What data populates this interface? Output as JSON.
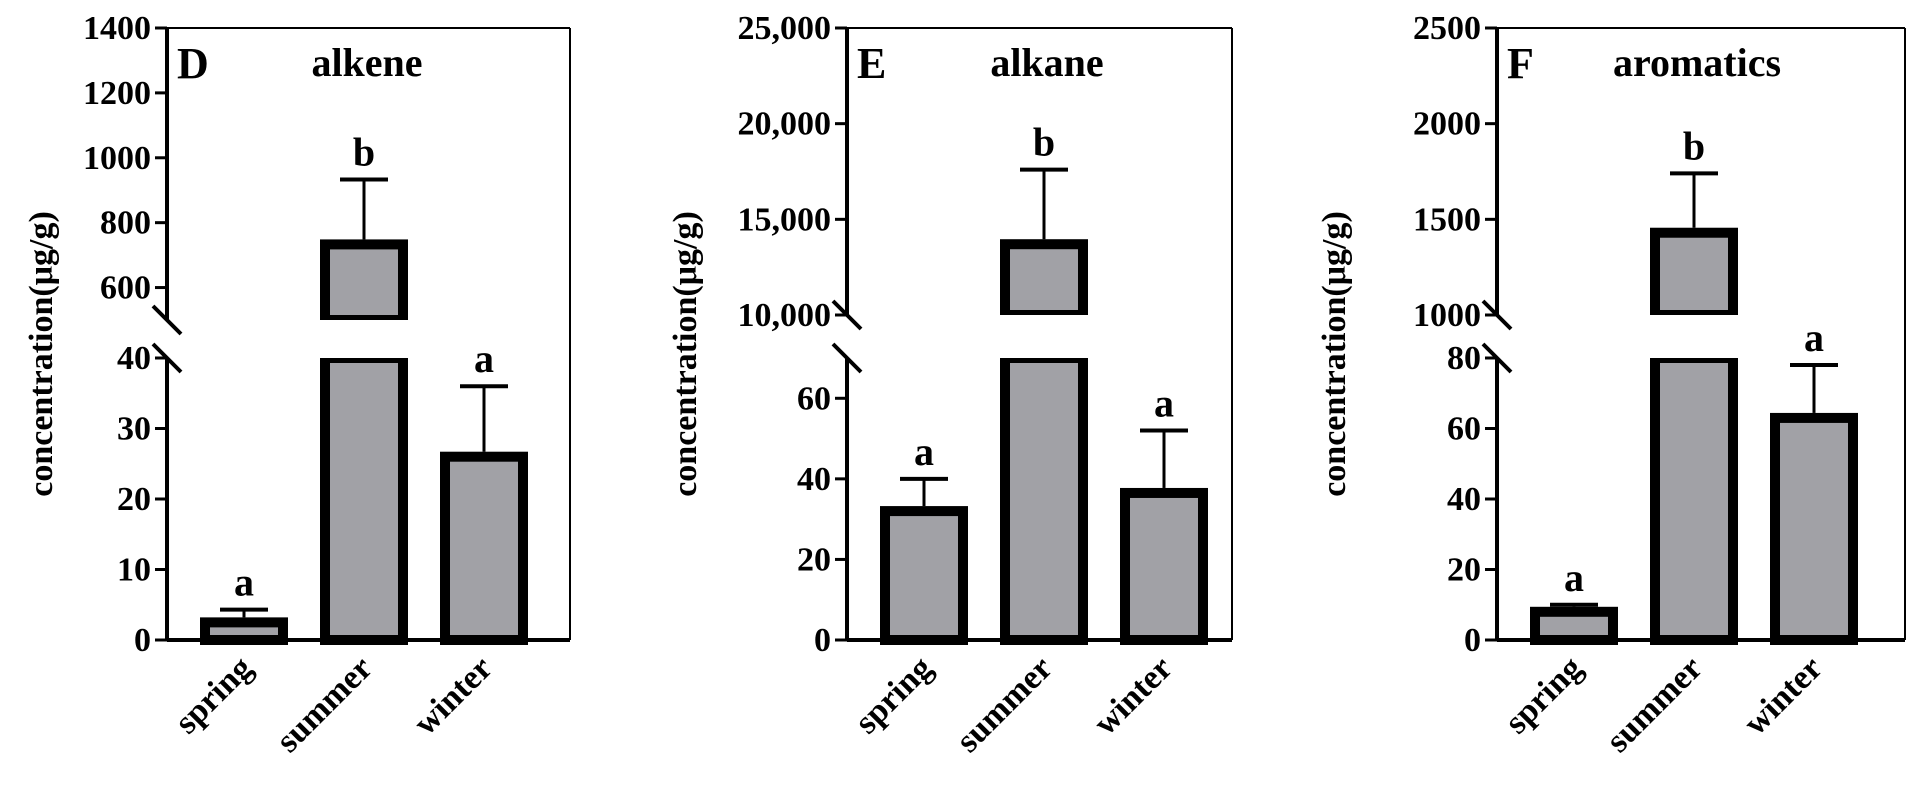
{
  "colors": {
    "bar_fill": "#a1a1a6",
    "bar_stroke": "#000000",
    "axis": "#000000",
    "background": "#ffffff"
  },
  "chart_data": [
    {
      "type": "bar",
      "panel": "D",
      "title": "alkene",
      "ylabel": "concentration(μg/g)",
      "categories": [
        "spring",
        "summer",
        "winter"
      ],
      "values": [
        2.5,
        733,
        26
      ],
      "errors": [
        1.8,
        200,
        10
      ],
      "significance": [
        "a",
        "b",
        "a"
      ],
      "y_broken": true,
      "lower_range": [
        0,
        40
      ],
      "upper_range": [
        500,
        1400
      ],
      "lower_ticks": [
        "0",
        "10",
        "20",
        "30",
        "40"
      ],
      "upper_ticks": [
        "600",
        "800",
        "1000",
        "1200",
        "1400"
      ],
      "lower_tick_values": [
        0,
        10,
        20,
        30,
        40
      ],
      "upper_tick_values": [
        600,
        800,
        1000,
        1200,
        1400
      ]
    },
    {
      "type": "bar",
      "panel": "E",
      "title": "alkane",
      "ylabel": "concentration(μg/g)",
      "categories": [
        "spring",
        "summer",
        "winter"
      ],
      "values": [
        32,
        13700,
        36.5
      ],
      "errors": [
        8,
        3900,
        15.5
      ],
      "significance": [
        "a",
        "b",
        "a"
      ],
      "y_broken": true,
      "lower_range": [
        0,
        70
      ],
      "upper_range": [
        10000,
        25000
      ],
      "lower_ticks": [
        "0",
        "20",
        "40",
        "60"
      ],
      "upper_ticks": [
        "10,000",
        "15,000",
        "20,000",
        "25,000"
      ],
      "lower_tick_values": [
        0,
        20,
        40,
        60
      ],
      "upper_tick_values": [
        10000,
        15000,
        20000,
        25000
      ]
    },
    {
      "type": "bar",
      "panel": "F",
      "title": "aromatics",
      "ylabel": "concentration(μg/g)",
      "categories": [
        "spring",
        "summer",
        "winter"
      ],
      "values": [
        8,
        1430,
        63
      ],
      "errors": [
        2,
        310,
        15
      ],
      "significance": [
        "a",
        "b",
        "a"
      ],
      "y_broken": true,
      "lower_range": [
        0,
        80
      ],
      "upper_range": [
        1000,
        2500
      ],
      "lower_ticks": [
        "0",
        "20",
        "40",
        "60",
        "80"
      ],
      "upper_ticks": [
        "1000",
        "1500",
        "2000",
        "2500"
      ],
      "lower_tick_values": [
        0,
        20,
        40,
        60,
        80
      ],
      "upper_tick_values": [
        1000,
        1500,
        2000,
        2500
      ]
    }
  ]
}
